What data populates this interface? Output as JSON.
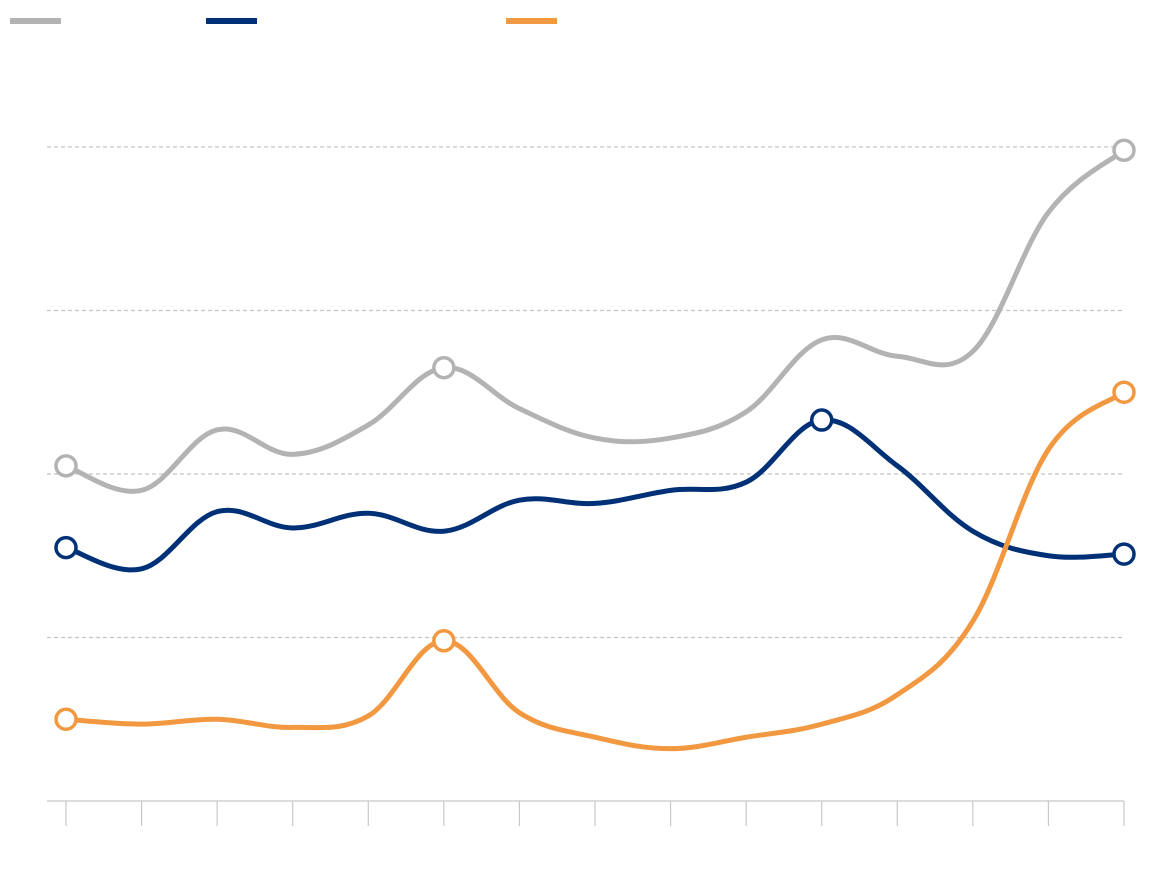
{
  "chart_data": {
    "type": "line",
    "title": "",
    "xlabel": "",
    "ylabel": "",
    "x": [
      1,
      2,
      3,
      4,
      5,
      6,
      7,
      8,
      9,
      10,
      11,
      12,
      13,
      14,
      15
    ],
    "ylim": [
      0,
      4
    ],
    "grid": true,
    "legend": "top-left",
    "series": [
      {
        "color": "#b3b3b3",
        "values": [
          2.05,
          1.9,
          2.27,
          2.12,
          2.3,
          2.65,
          2.4,
          2.22,
          2.22,
          2.38,
          2.82,
          2.72,
          2.75,
          3.6,
          3.98
        ],
        "marked": [
          0,
          5,
          14
        ]
      },
      {
        "color": "#003177",
        "values": [
          1.55,
          1.42,
          1.77,
          1.67,
          1.76,
          1.65,
          1.84,
          1.82,
          1.9,
          1.95,
          2.33,
          2.05,
          1.65,
          1.5,
          1.51
        ],
        "marked": [
          0,
          10,
          14
        ]
      },
      {
        "color": "#f29840",
        "values": [
          0.5,
          0.47,
          0.5,
          0.45,
          0.52,
          0.98,
          0.54,
          0.39,
          0.32,
          0.39,
          0.47,
          0.65,
          1.1,
          2.15,
          2.5
        ],
        "marked": [
          0,
          5,
          14
        ]
      }
    ]
  }
}
